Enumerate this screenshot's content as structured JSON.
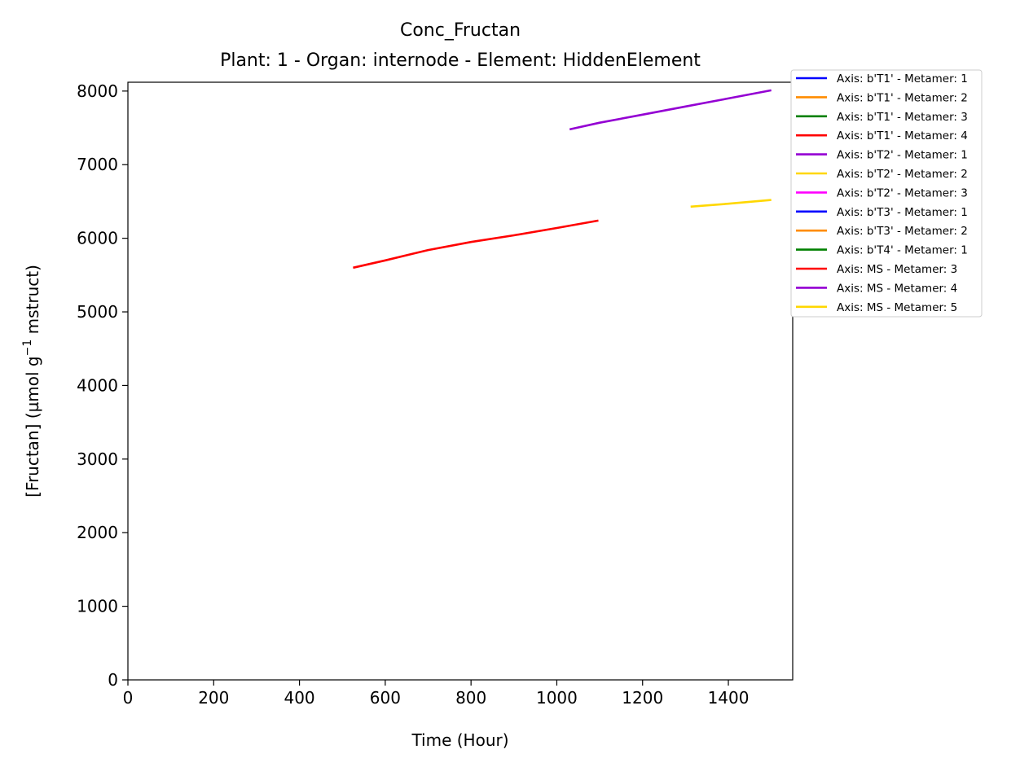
{
  "chart_data": {
    "type": "line",
    "title": "Conc_Fructan",
    "subtitle": "Plant: 1 - Organ: internode - Element: HiddenElement",
    "xlabel": "Time (Hour)",
    "ylabel_main": "[Fructan] (µmol g",
    "ylabel_sup": "−1",
    "ylabel_tail": " mstruct)",
    "xlim": [
      0,
      1550
    ],
    "ylim": [
      0,
      8120
    ],
    "xticks": [
      0,
      200,
      400,
      600,
      800,
      1000,
      1200,
      1400
    ],
    "yticks": [
      0,
      1000,
      2000,
      3000,
      4000,
      5000,
      6000,
      7000,
      8000
    ],
    "grid": false,
    "legend_position": "outside-top-right",
    "series": [
      {
        "name": "Axis: b'T1' - Metamer: 1",
        "color": "#0000ff",
        "x": [],
        "y": []
      },
      {
        "name": "Axis: b'T1' - Metamer: 2",
        "color": "#ff8c00",
        "x": [],
        "y": []
      },
      {
        "name": "Axis: b'T1' - Metamer: 3",
        "color": "#008000",
        "x": [],
        "y": []
      },
      {
        "name": "Axis: b'T1' - Metamer: 4",
        "color": "#ff0000",
        "x": [],
        "y": []
      },
      {
        "name": "Axis: b'T2' - Metamer: 1",
        "color": "#9400d3",
        "x": [],
        "y": []
      },
      {
        "name": "Axis: b'T2' - Metamer: 2",
        "color": "#ffd700",
        "x": [],
        "y": []
      },
      {
        "name": "Axis: b'T2' - Metamer: 3",
        "color": "#ff00ff",
        "x": [],
        "y": []
      },
      {
        "name": "Axis: b'T3' - Metamer: 1",
        "color": "#0000ff",
        "x": [],
        "y": []
      },
      {
        "name": "Axis: b'T3' - Metamer: 2",
        "color": "#ff8c00",
        "x": [],
        "y": []
      },
      {
        "name": "Axis: b'T4' - Metamer: 1",
        "color": "#008000",
        "x": [],
        "y": []
      },
      {
        "name": "Axis: MS - Metamer: 3",
        "color": "#ff0000",
        "x": [
          525,
          600,
          700,
          800,
          900,
          1000,
          1097
        ],
        "y": [
          5600,
          5700,
          5840,
          5950,
          6040,
          6140,
          6240
        ]
      },
      {
        "name": "Axis: MS - Metamer: 4",
        "color": "#9400d3",
        "x": [
          1030,
          1100,
          1200,
          1300,
          1400,
          1500
        ],
        "y": [
          7480,
          7570,
          7680,
          7790,
          7900,
          8010
        ]
      },
      {
        "name": "Axis: MS - Metamer: 5",
        "color": "#ffd700",
        "x": [
          1312,
          1400,
          1500
        ],
        "y": [
          6430,
          6470,
          6520
        ]
      }
    ]
  }
}
